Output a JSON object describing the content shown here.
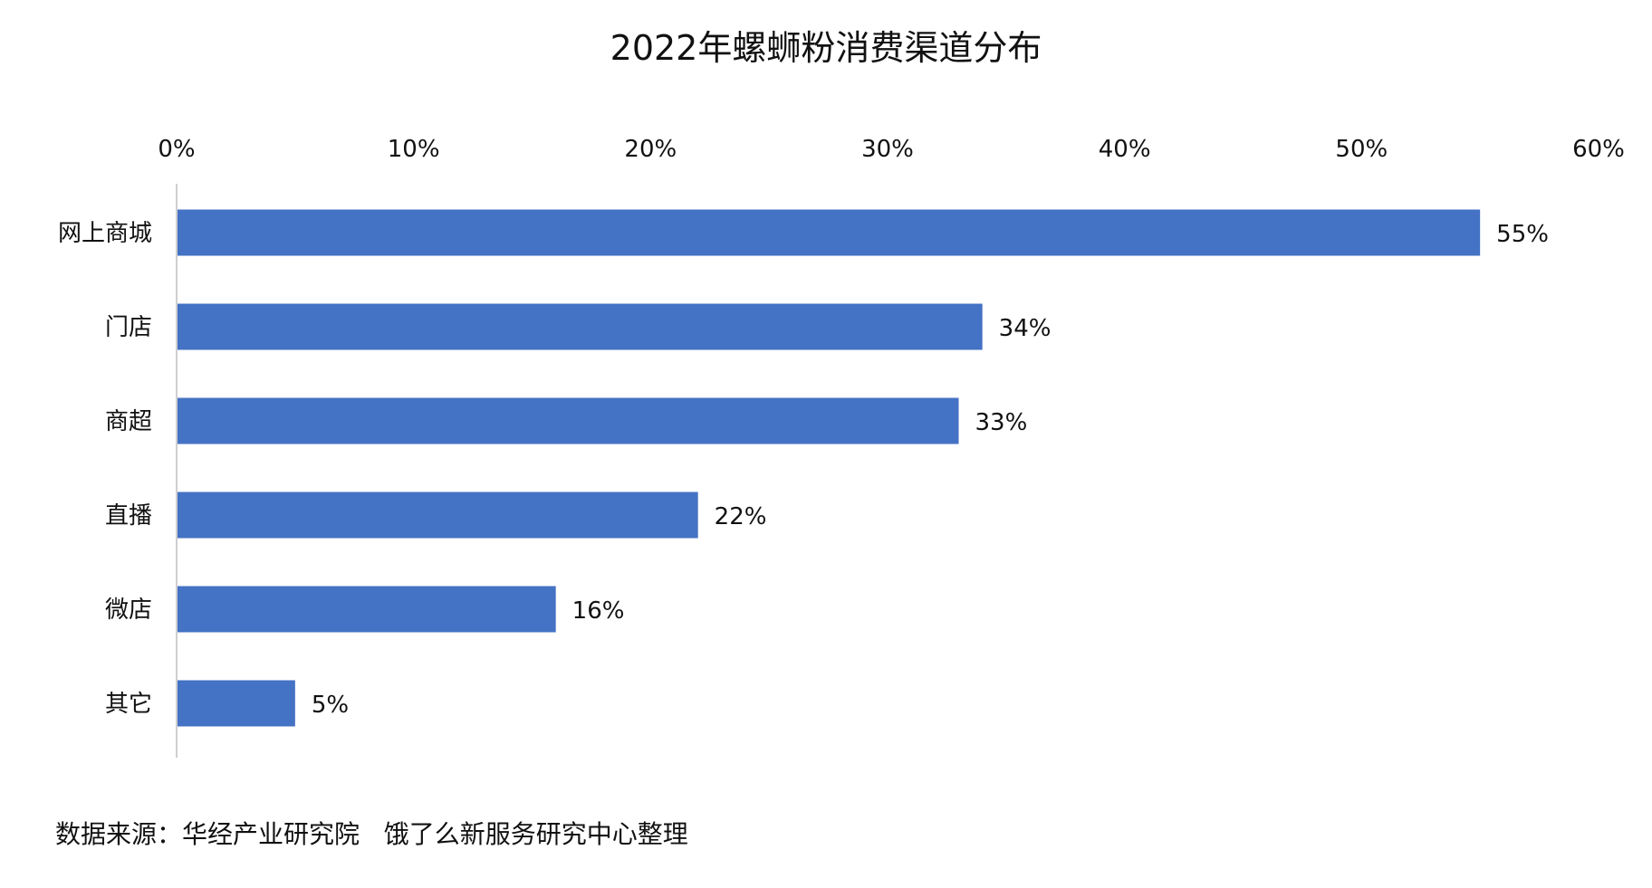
{
  "title": "2022年螺蛳粉消费渠道分布",
  "source": "数据来源：华经产业研究院   饿了么新服务研究中心整理",
  "chart_data": {
    "type": "bar",
    "orientation": "horizontal",
    "title": "2022年螺蛳粉消费渠道分布",
    "xlabel": "",
    "ylabel": "",
    "xlim": [
      0,
      60
    ],
    "x_ticks": [
      0,
      10,
      20,
      30,
      40,
      50,
      60
    ],
    "tick_suffix": "%",
    "x_axis_position": "top",
    "grid": false,
    "legend": "none",
    "bar_color": "#4472C4",
    "categories": [
      "网上商城",
      "门店",
      "商超",
      "直播",
      "微店",
      "其它"
    ],
    "values": [
      55,
      34,
      33,
      22,
      16,
      5
    ],
    "data_labels": [
      "55%",
      "34%",
      "33%",
      "22%",
      "16%",
      "5%"
    ]
  }
}
